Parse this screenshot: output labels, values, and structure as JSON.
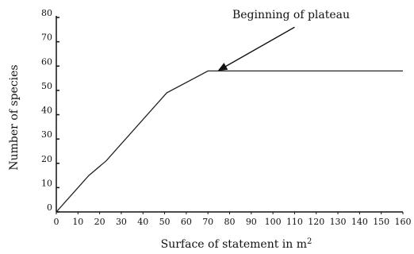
{
  "chart_data": {
    "type": "line",
    "xlabel": "Surface of statement in m",
    "xlabel_sup": "2",
    "ylabel": "Number of species",
    "xlim": [
      0,
      160
    ],
    "ylim": [
      0,
      80
    ],
    "x_ticks": [
      "0",
      "10",
      "20",
      "30",
      "40",
      "50",
      "60",
      "70",
      "80",
      "90",
      "100",
      "110",
      "120",
      "130",
      "140",
      "150",
      "160"
    ],
    "y_ticks": [
      "0",
      "10",
      "20",
      "30",
      "40",
      "50",
      "60",
      "70",
      "80"
    ],
    "grid": false,
    "series": [
      {
        "x": [
          0,
          15,
          23,
          51,
          70,
          160
        ],
        "y": [
          0,
          15,
          21,
          49,
          58,
          58
        ]
      }
    ],
    "annotation": {
      "text": "Beginning of plateau",
      "from": [
        110,
        76
      ],
      "to": [
        70,
        58
      ]
    }
  }
}
